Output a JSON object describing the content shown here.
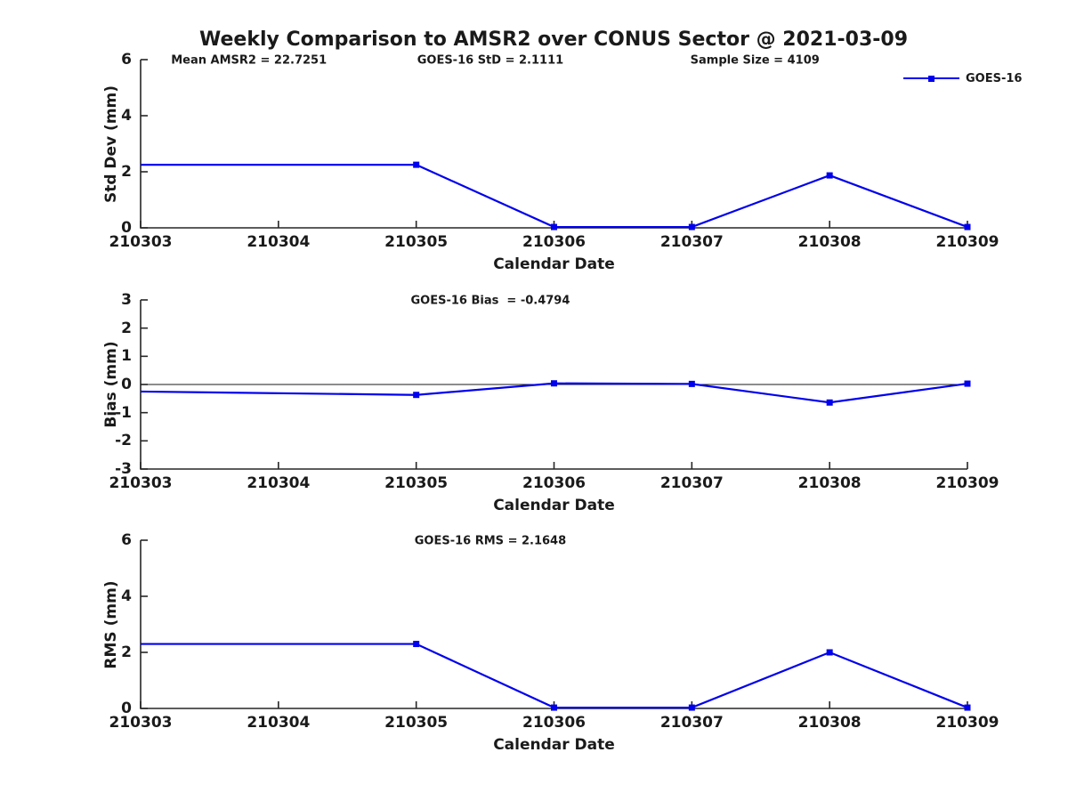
{
  "title": "Weekly Comparison to AMSR2 over CONUS Sector @ 2021-03-09",
  "legend": {
    "label": "GOES-16"
  },
  "colors": {
    "series": "#0000EE",
    "axis": "#262626",
    "zero_line": "#1a1a1a",
    "background": "#FFFFFF"
  },
  "chart_data": [
    {
      "type": "line",
      "ylabel": "Std Dev (mm)",
      "xlabel": "Calendar Date",
      "ylim": [
        0,
        6
      ],
      "yticks": [
        0,
        2,
        4,
        6
      ],
      "x_ticklabels": [
        "210303",
        "210304",
        "210305",
        "210306",
        "210307",
        "210308",
        "210309"
      ],
      "grid": false,
      "zero_line": false,
      "legend_visible": true,
      "legend_position": "top-right",
      "annotations": [
        {
          "text": "Mean AMSR2 = 22.7251",
          "fx": 0.131
        },
        {
          "text": "GOES-16 StD = 2.1111",
          "fx": 0.423
        },
        {
          "text": "Sample Size = 4109",
          "fx": 0.743
        }
      ],
      "series": [
        {
          "name": "GOES-16",
          "marker": "square",
          "x": [
            "210303",
            "210305",
            "210306",
            "210307",
            "210308",
            "210309"
          ],
          "y": [
            2.25,
            2.25,
            0.03,
            0.03,
            1.87,
            0.03
          ],
          "marker_shown": [
            false,
            true,
            true,
            true,
            true,
            true
          ]
        }
      ]
    },
    {
      "type": "line",
      "ylabel": "Bias (mm)",
      "xlabel": "Calendar Date",
      "ylim": [
        -3,
        3
      ],
      "yticks": [
        -3,
        -2,
        -1,
        0,
        1,
        2,
        3
      ],
      "x_ticklabels": [
        "210303",
        "210304",
        "210305",
        "210306",
        "210307",
        "210308",
        "210309"
      ],
      "grid": false,
      "zero_line": true,
      "legend_visible": false,
      "annotations": [
        {
          "text": "GOES-16 Bias  = -0.4794",
          "fx": 0.423
        }
      ],
      "series": [
        {
          "name": "GOES-16",
          "marker": "square",
          "x": [
            "210303",
            "210305",
            "210306",
            "210307",
            "210308",
            "210309"
          ],
          "y": [
            -0.25,
            -0.37,
            0.04,
            0.02,
            -0.64,
            0.03
          ],
          "marker_shown": [
            false,
            true,
            true,
            true,
            true,
            true
          ]
        }
      ]
    },
    {
      "type": "line",
      "ylabel": "RMS (mm)",
      "xlabel": "Calendar Date",
      "ylim": [
        0,
        6
      ],
      "yticks": [
        0,
        2,
        4,
        6
      ],
      "x_ticklabels": [
        "210303",
        "210304",
        "210305",
        "210306",
        "210307",
        "210308",
        "210309"
      ],
      "grid": false,
      "zero_line": false,
      "legend_visible": false,
      "annotations": [
        {
          "text": "GOES-16 RMS = 2.1648",
          "fx": 0.423
        }
      ],
      "series": [
        {
          "name": "GOES-16",
          "marker": "square",
          "x": [
            "210303",
            "210305",
            "210306",
            "210307",
            "210308",
            "210309"
          ],
          "y": [
            2.3,
            2.3,
            0.03,
            0.03,
            2.0,
            0.03
          ],
          "marker_shown": [
            false,
            true,
            true,
            true,
            true,
            true
          ]
        }
      ]
    }
  ]
}
